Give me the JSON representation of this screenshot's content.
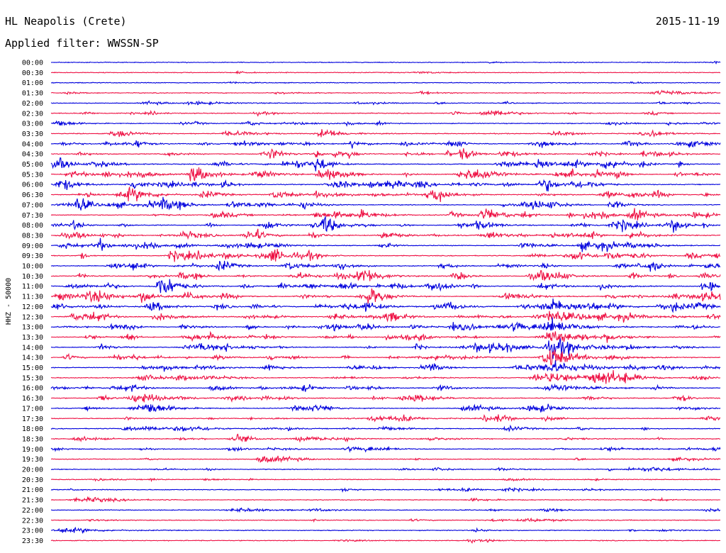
{
  "header": {
    "station": "HL Neapolis (Crete)",
    "date": "2015-11-19",
    "filter": "Applied filter: WWSSN-SP"
  },
  "chart_data": {
    "type": "line",
    "title": "HL Neapolis (Crete)",
    "subtitle": "Applied filter: WWSSN-SP",
    "ylabel": "HHZ - 50000",
    "xlabel": "",
    "colors": [
      "#0000dd",
      "#ee1144"
    ],
    "row_labels": [
      "00:00",
      "00:30",
      "01:00",
      "01:30",
      "02:00",
      "02:30",
      "03:00",
      "03:30",
      "04:00",
      "04:30",
      "05:00",
      "05:30",
      "06:00",
      "06:30",
      "07:00",
      "07:30",
      "08:00",
      "08:30",
      "09:00",
      "09:30",
      "10:00",
      "10:30",
      "11:00",
      "11:30",
      "12:00",
      "12:30",
      "13:00",
      "13:30",
      "14:00",
      "14:30",
      "15:00",
      "15:30",
      "16:00",
      "16:30",
      "17:00",
      "17:30",
      "18:00",
      "18:30",
      "19:00",
      "19:30",
      "20:00",
      "20:30",
      "21:00",
      "21:30",
      "22:00",
      "22:30",
      "23:00",
      "23:30"
    ],
    "activity": [
      0.08,
      0.1,
      0.08,
      0.12,
      0.3,
      0.45,
      0.55,
      0.6,
      0.8,
      0.95,
      1.0,
      1.0,
      1.0,
      1.0,
      1.0,
      1.0,
      1.0,
      1.0,
      1.0,
      1.0,
      1.0,
      1.0,
      1.0,
      1.0,
      1.0,
      1.0,
      0.95,
      0.9,
      0.85,
      0.8,
      0.8,
      0.75,
      0.75,
      0.7,
      0.7,
      0.65,
      0.55,
      0.5,
      0.45,
      0.4,
      0.35,
      0.25,
      0.25,
      0.2,
      0.2,
      0.2,
      0.2,
      0.15
    ],
    "events": [
      {
        "row": 3,
        "minute": 27.5,
        "amplitude": 2.5
      },
      {
        "row": 4,
        "minute": 6.5,
        "amplitude": 1.5
      },
      {
        "row": 5,
        "minute": 20.0,
        "amplitude": 1.5
      },
      {
        "row": 24,
        "minute": 22.5,
        "amplitude": 6.0
      },
      {
        "row": 25,
        "minute": 22.5,
        "amplitude": 6.0
      },
      {
        "row": 26,
        "minute": 22.5,
        "amplitude": 6.0
      },
      {
        "row": 27,
        "minute": 22.5,
        "amplitude": 6.0
      },
      {
        "row": 28,
        "minute": 22.5,
        "amplitude": 6.0
      },
      {
        "row": 29,
        "minute": 22.5,
        "amplitude": 6.0
      },
      {
        "row": 30,
        "minute": 22.5,
        "amplitude": 6.0
      },
      {
        "row": 31,
        "minute": 22.5,
        "amplitude": 5.0
      },
      {
        "row": 32,
        "minute": 22.5,
        "amplitude": 4.0
      },
      {
        "row": 37,
        "minute": 11.5,
        "amplitude": 2.5
      },
      {
        "row": 38,
        "minute": 25.0,
        "amplitude": 1.8
      },
      {
        "row": 40,
        "minute": 27.0,
        "amplitude": 1.8
      },
      {
        "row": 42,
        "minute": 20.5,
        "amplitude": 1.5
      },
      {
        "row": 43,
        "minute": 2.0,
        "amplitude": 1.8
      },
      {
        "row": 44,
        "minute": 8.5,
        "amplitude": 1.8
      },
      {
        "row": 45,
        "minute": 21.5,
        "amplitude": 1.5
      },
      {
        "row": 46,
        "minute": 0.7,
        "amplitude": 2.5
      }
    ]
  }
}
